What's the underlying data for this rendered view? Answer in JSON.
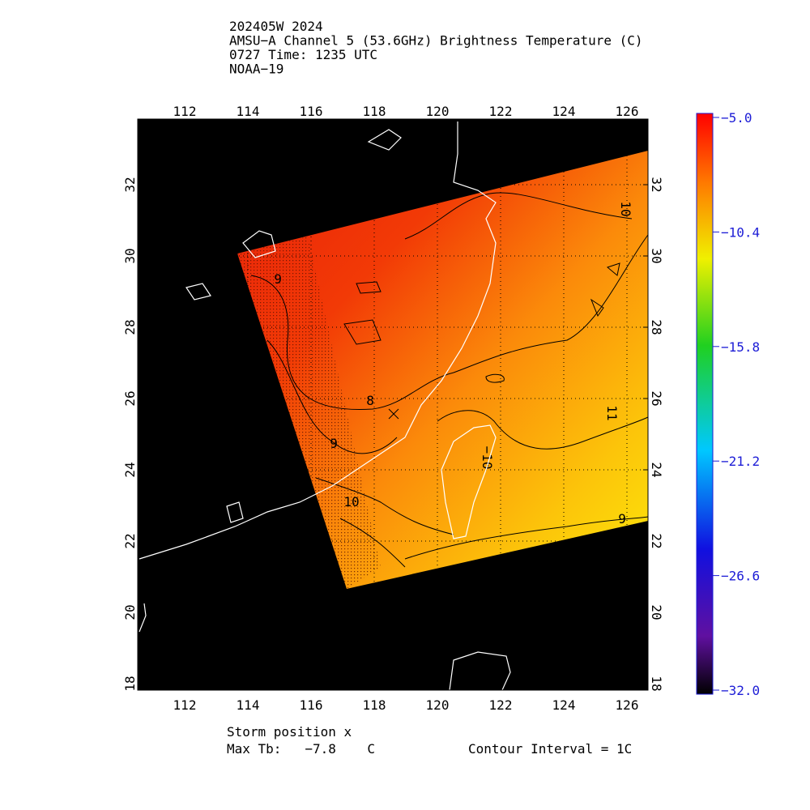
{
  "header": {
    "lines": [
      "202405W 2024",
      "AMSU−A Channel 5 (53.6GHz) Brightness Temperature (C)",
      "0727 Time: 1235 UTC",
      "NOAA−19"
    ]
  },
  "map": {
    "lon_ticks": [
      112,
      114,
      116,
      118,
      120,
      122,
      124,
      126
    ],
    "lat_ticks": [
      18,
      20,
      22,
      24,
      26,
      28,
      30,
      32
    ],
    "contour_labels": [
      "9",
      "8",
      "9",
      "10",
      "−10",
      "10",
      "11",
      "9"
    ]
  },
  "colorbar": {
    "labels": [
      "−5.0",
      "−10.4",
      "−15.8",
      "−21.2",
      "−26.6",
      "−32.0"
    ]
  },
  "footer": {
    "storm_position": "Storm position x",
    "max_tb": "Max Tb:   −7.8    C",
    "contour_interval": "Contour Interval = 1C"
  }
}
